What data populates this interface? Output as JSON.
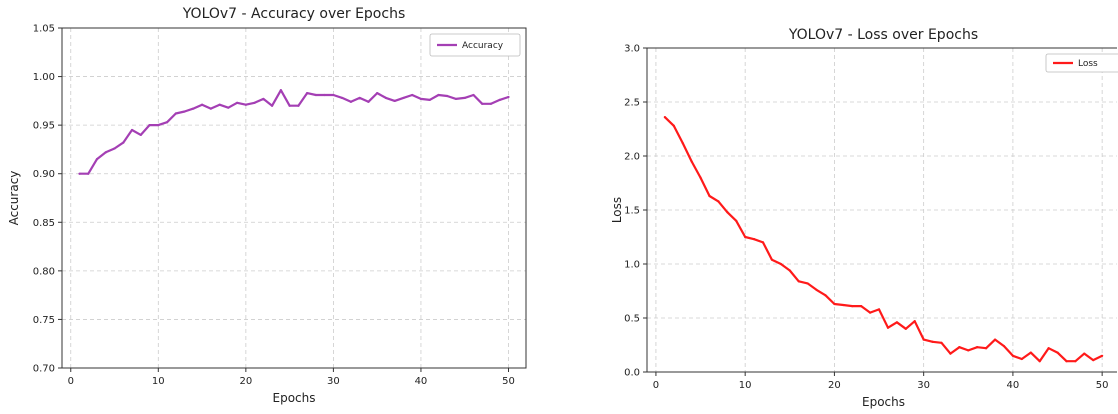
{
  "chart_data": [
    {
      "type": "line",
      "title": "YOLOv7 - Accuracy over Epochs",
      "xlabel": "Epochs",
      "ylabel": "Accuracy",
      "xlim": [
        -1,
        52
      ],
      "ylim": [
        0.7,
        1.05
      ],
      "xticks": [
        "0",
        "10",
        "20",
        "30",
        "40",
        "50"
      ],
      "yticks": [
        "0.70",
        "0.75",
        "0.80",
        "0.85",
        "0.90",
        "0.95",
        "1.00",
        "1.05"
      ],
      "grid": true,
      "legend": "top-right",
      "x": [
        1,
        2,
        3,
        4,
        5,
        6,
        7,
        8,
        9,
        10,
        11,
        12,
        13,
        14,
        15,
        16,
        17,
        18,
        19,
        20,
        21,
        22,
        23,
        24,
        25,
        26,
        27,
        28,
        29,
        30,
        31,
        32,
        33,
        34,
        35,
        36,
        37,
        38,
        39,
        40,
        41,
        42,
        43,
        44,
        45,
        46,
        47,
        48,
        49,
        50
      ],
      "series": [
        {
          "name": "Accuracy",
          "color": "#a43fb4",
          "values": [
            0.9,
            0.9,
            0.915,
            0.922,
            0.926,
            0.932,
            0.945,
            0.94,
            0.95,
            0.95,
            0.953,
            0.962,
            0.964,
            0.967,
            0.971,
            0.967,
            0.971,
            0.968,
            0.973,
            0.971,
            0.973,
            0.977,
            0.97,
            0.986,
            0.97,
            0.97,
            0.983,
            0.981,
            0.981,
            0.981,
            0.978,
            0.974,
            0.978,
            0.974,
            0.983,
            0.978,
            0.975,
            0.978,
            0.981,
            0.977,
            0.976,
            0.981,
            0.98,
            0.977,
            0.978,
            0.981,
            0.972,
            0.972,
            0.976,
            0.979
          ]
        }
      ]
    },
    {
      "type": "line",
      "title": "YOLOv7 - Loss over Epochs",
      "xlabel": "Epochs",
      "ylabel": "Loss",
      "xlim": [
        -1,
        52
      ],
      "ylim": [
        0.0,
        3.0
      ],
      "xticks": [
        "0",
        "10",
        "20",
        "30",
        "40",
        "50"
      ],
      "yticks": [
        "0.0",
        "0.5",
        "1.0",
        "1.5",
        "2.0",
        "2.5",
        "3.0"
      ],
      "grid": true,
      "legend": "top-right",
      "x": [
        1,
        2,
        3,
        4,
        5,
        6,
        7,
        8,
        9,
        10,
        11,
        12,
        13,
        14,
        15,
        16,
        17,
        18,
        19,
        20,
        21,
        22,
        23,
        24,
        25,
        26,
        27,
        28,
        29,
        30,
        31,
        32,
        33,
        34,
        35,
        36,
        37,
        38,
        39,
        40,
        41,
        42,
        43,
        44,
        45,
        46,
        47,
        48,
        49,
        50
      ],
      "series": [
        {
          "name": "Loss",
          "color": "#ff1a1a",
          "values": [
            2.36,
            2.28,
            2.12,
            1.95,
            1.8,
            1.63,
            1.58,
            1.48,
            1.4,
            1.25,
            1.23,
            1.2,
            1.04,
            1.0,
            0.94,
            0.84,
            0.82,
            0.76,
            0.71,
            0.63,
            0.62,
            0.61,
            0.61,
            0.55,
            0.58,
            0.41,
            0.46,
            0.4,
            0.47,
            0.3,
            0.28,
            0.27,
            0.17,
            0.23,
            0.2,
            0.23,
            0.22,
            0.3,
            0.24,
            0.15,
            0.12,
            0.18,
            0.1,
            0.22,
            0.18,
            0.1,
            0.1,
            0.17,
            0.11,
            0.15
          ]
        }
      ]
    }
  ]
}
